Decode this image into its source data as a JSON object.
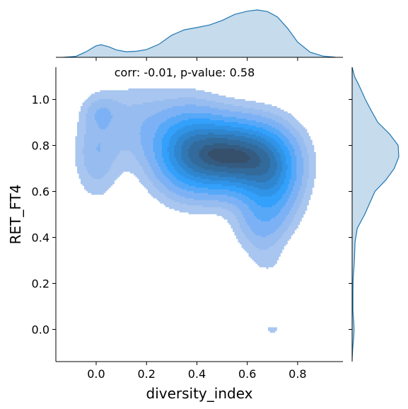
{
  "chart_data": {
    "type": "kde-jointplot",
    "xlabel": "diversity_index",
    "ylabel": "RET_FT4",
    "annotation": "corr: -0.01, p-value: 0.58",
    "xlim": [
      -0.16,
      0.98
    ],
    "ylim": [
      -0.14,
      1.14
    ],
    "xticks": [
      "0.0",
      "0.2",
      "0.4",
      "0.6",
      "0.8"
    ],
    "xtick_values": [
      0.0,
      0.2,
      0.4,
      0.6,
      0.8
    ],
    "yticks": [
      "0.0",
      "0.2",
      "0.4",
      "0.6",
      "0.8",
      "1.0"
    ],
    "ytick_values": [
      0.0,
      0.2,
      0.4,
      0.6,
      0.8,
      1.0
    ],
    "colors": {
      "levels": [
        "#a8c6ef",
        "#97bcef",
        "#7cb2f5",
        "#58a8f8",
        "#33a0fb",
        "#3093e6",
        "#2f86cf",
        "#3077b4",
        "#326a9b",
        "#345c82",
        "#364f6b"
      ],
      "marginal_fill": "#c6dbeb",
      "marginal_line": "#1f77b4"
    },
    "marginal_x": {
      "x": [
        -0.13,
        -0.08,
        -0.04,
        0.0,
        0.02,
        0.05,
        0.08,
        0.12,
        0.16,
        0.2,
        0.25,
        0.3,
        0.35,
        0.4,
        0.45,
        0.5,
        0.55,
        0.6,
        0.64,
        0.68,
        0.72,
        0.76,
        0.8,
        0.85,
        0.9,
        0.95
      ],
      "density": [
        0.0,
        0.06,
        0.35,
        0.72,
        0.78,
        0.66,
        0.46,
        0.35,
        0.38,
        0.48,
        0.82,
        1.38,
        1.72,
        1.86,
        2.02,
        2.3,
        2.68,
        2.88,
        2.96,
        2.86,
        2.52,
        1.82,
        0.95,
        0.32,
        0.08,
        0.01
      ]
    },
    "marginal_y": {
      "y": [
        -0.13,
        -0.08,
        -0.03,
        0.0,
        0.03,
        0.08,
        0.15,
        0.22,
        0.3,
        0.38,
        0.44,
        0.5,
        0.55,
        0.6,
        0.65,
        0.7,
        0.75,
        0.8,
        0.85,
        0.9,
        0.95,
        1.0,
        1.05,
        1.1,
        1.14
      ],
      "density": [
        0.0,
        0.04,
        0.1,
        0.12,
        0.1,
        0.05,
        0.05,
        0.06,
        0.14,
        0.18,
        0.32,
        0.78,
        1.1,
        1.42,
        2.1,
        2.62,
        2.9,
        2.86,
        2.32,
        1.6,
        1.2,
        0.82,
        0.5,
        0.15,
        0.0
      ]
    },
    "kde_components": [
      {
        "x": 0.55,
        "y": 0.755,
        "sx": 0.13,
        "sy": 0.105,
        "w": 1.0
      },
      {
        "x": 0.36,
        "y": 0.78,
        "sx": 0.1,
        "sy": 0.13,
        "w": 0.55
      },
      {
        "x": 0.7,
        "y": 0.65,
        "sx": 0.08,
        "sy": 0.13,
        "w": 0.45
      },
      {
        "x": 0.65,
        "y": 0.45,
        "sx": 0.07,
        "sy": 0.09,
        "w": 0.18
      },
      {
        "x": 0.0,
        "y": 0.76,
        "sx": 0.06,
        "sy": 0.13,
        "w": 0.2
      },
      {
        "x": 0.02,
        "y": 0.95,
        "sx": 0.05,
        "sy": 0.05,
        "w": 0.12
      },
      {
        "x": 0.15,
        "y": 0.9,
        "sx": 0.1,
        "sy": 0.12,
        "w": 0.15
      },
      {
        "x": 0.68,
        "y": 0.29,
        "sx": 0.05,
        "sy": 0.05,
        "w": 0.06
      },
      {
        "x": 0.7,
        "y": 0.0,
        "sx": 0.045,
        "sy": 0.025,
        "w": 0.09
      }
    ],
    "kde_level_fractions": [
      0.07,
      0.13,
      0.2,
      0.3,
      0.4,
      0.5,
      0.6,
      0.7,
      0.8,
      0.9,
      0.96
    ]
  }
}
